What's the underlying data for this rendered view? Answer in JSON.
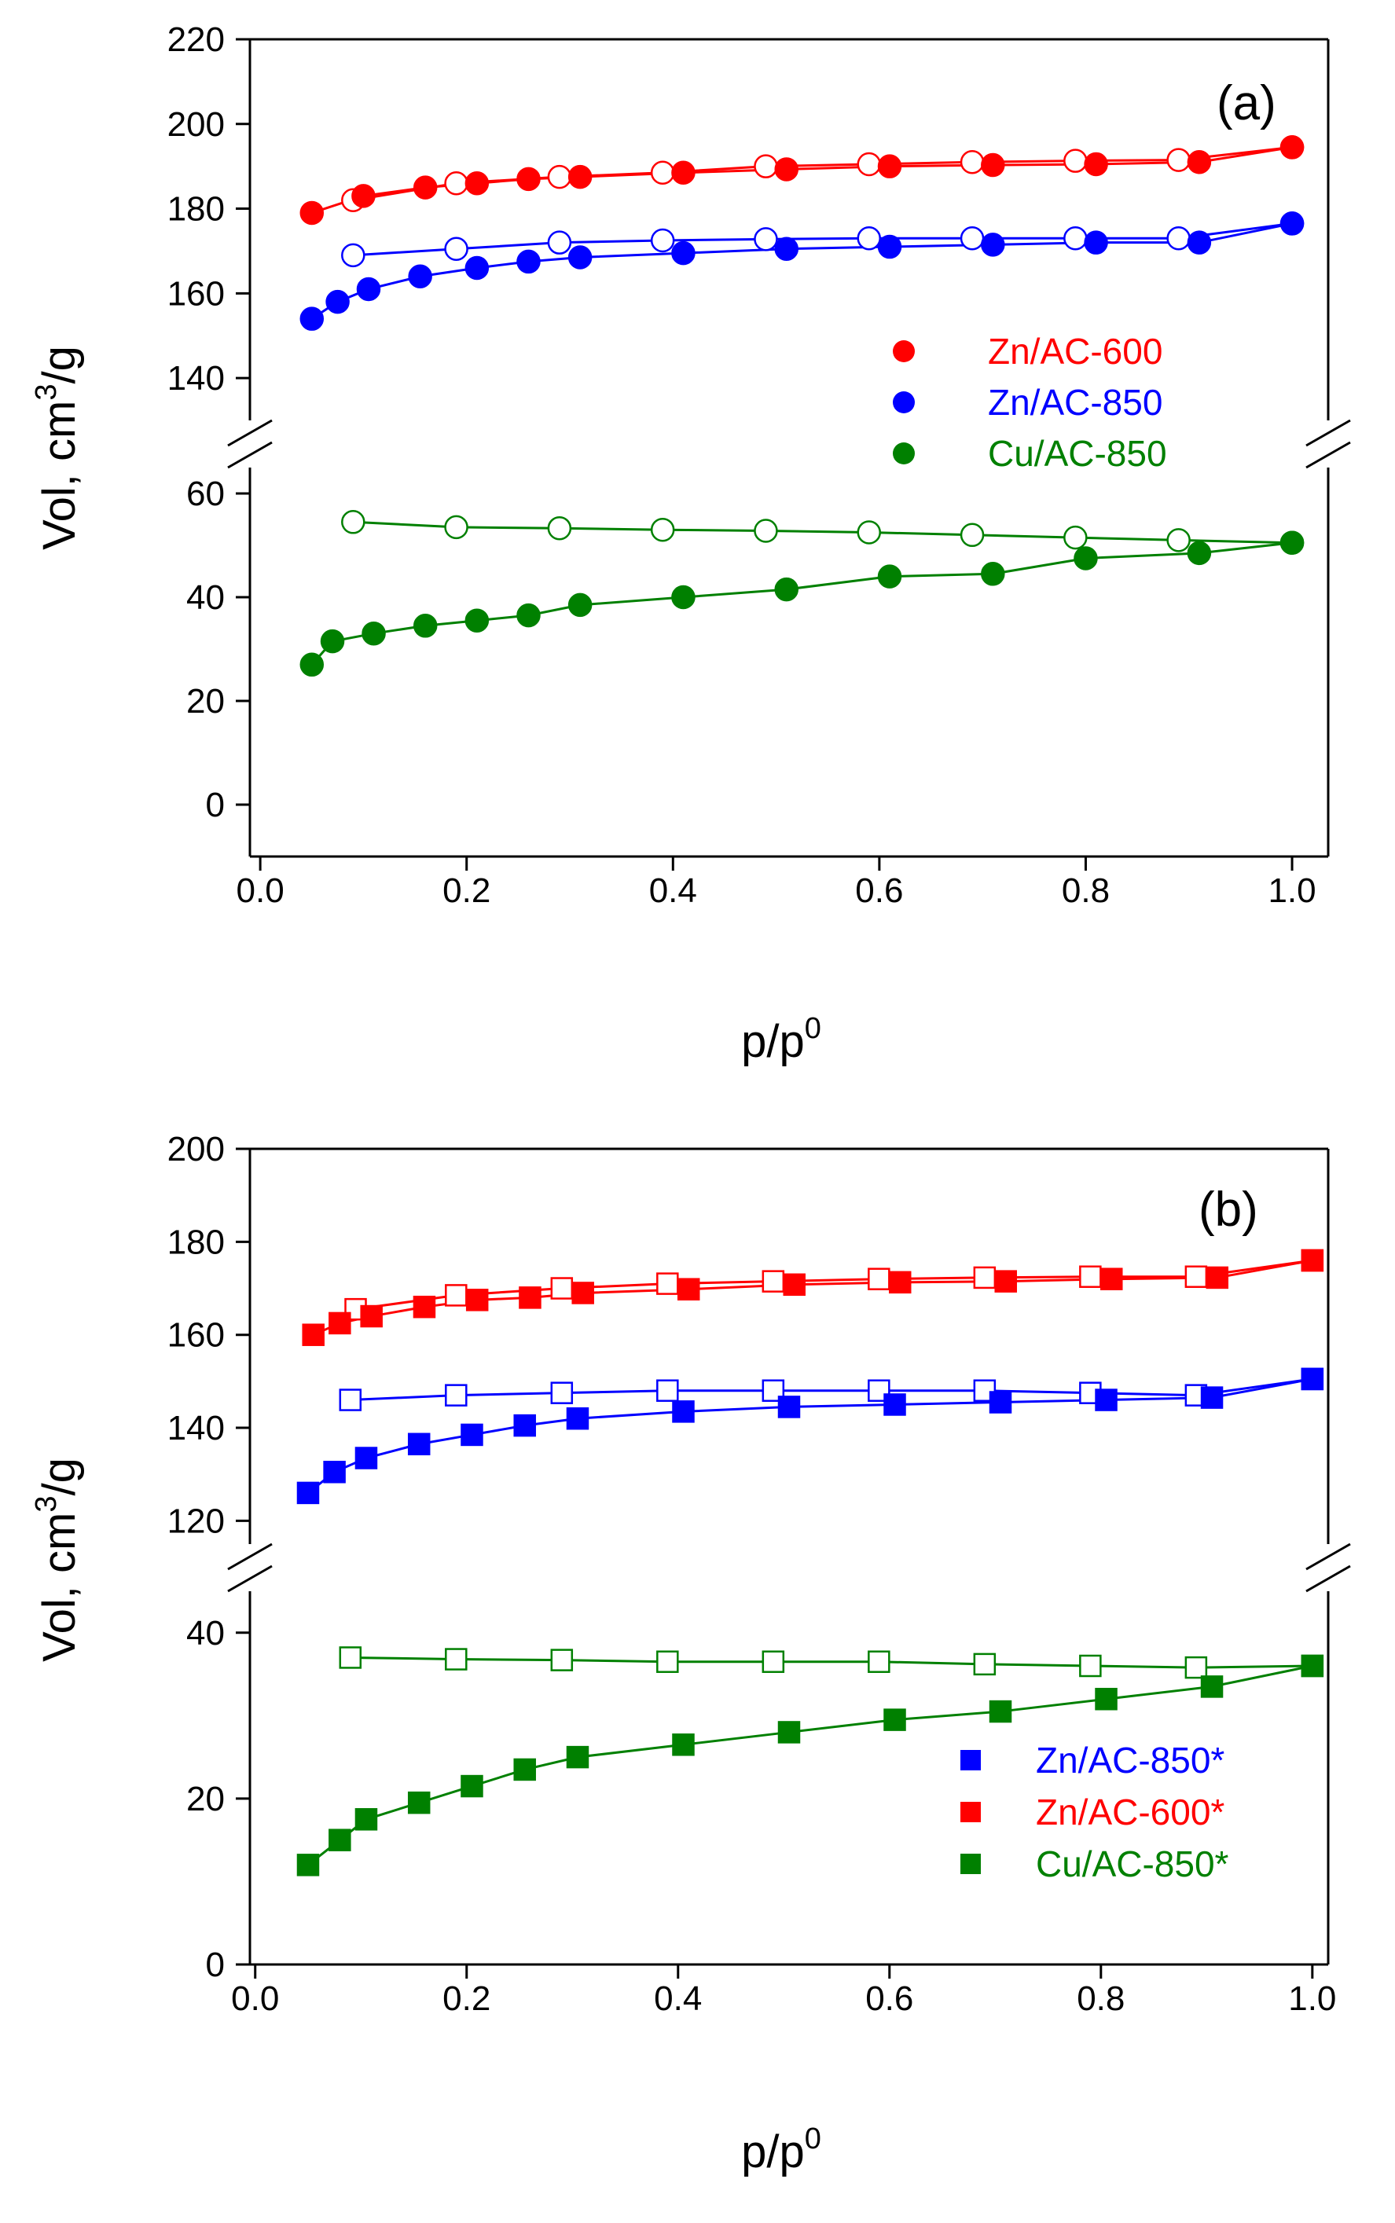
{
  "chart_data": [
    {
      "type": "scatter",
      "panel_label": "(a)",
      "xlabel": "p/p",
      "xlabel_sup": "0",
      "ylabel": "Vol, cm",
      "ylabel_sup": "3",
      "ylabel_suffix": "/g",
      "xlim": [
        0.0,
        1.0
      ],
      "xticks": [
        "0.0",
        "0.2",
        "0.4",
        "0.6",
        "0.8",
        "1.0"
      ],
      "broken_axis": true,
      "upper_ylim": [
        130,
        220
      ],
      "upper_yticks": [
        "140",
        "160",
        "180",
        "200",
        "220"
      ],
      "lower_ylim": [
        -10,
        65
      ],
      "lower_yticks": [
        "0",
        "20",
        "40",
        "60"
      ],
      "marker": "circle",
      "legend_position": "middle-right",
      "series": [
        {
          "name": "Zn/AC-600",
          "color": "#ff0000",
          "segment": "upper",
          "adsorption": {
            "x": [
              0.05,
              0.1,
              0.16,
              0.21,
              0.26,
              0.31,
              0.41,
              0.51,
              0.61,
              0.71,
              0.81,
              0.91,
              1.0
            ],
            "y": [
              179,
              183,
              185,
              186,
              187,
              187.5,
              188.5,
              189.3,
              190,
              190.3,
              190.5,
              191,
              194.5
            ]
          },
          "desorption": {
            "x": [
              0.09,
              0.19,
              0.29,
              0.39,
              0.49,
              0.59,
              0.69,
              0.79,
              0.89,
              1.0
            ],
            "y": [
              182,
              186,
              187.5,
              188.5,
              190,
              190.5,
              191,
              191.3,
              191.5,
              194.5
            ]
          }
        },
        {
          "name": "Zn/AC-850",
          "color": "#0000ff",
          "segment": "upper",
          "adsorption": {
            "x": [
              0.05,
              0.075,
              0.105,
              0.155,
              0.21,
              0.26,
              0.31,
              0.41,
              0.51,
              0.61,
              0.71,
              0.81,
              0.91,
              1.0
            ],
            "y": [
              154,
              158,
              161,
              164,
              166,
              167.5,
              168.5,
              169.5,
              170.5,
              171,
              171.5,
              172,
              172,
              176.5
            ]
          },
          "desorption": {
            "x": [
              0.09,
              0.19,
              0.29,
              0.39,
              0.49,
              0.59,
              0.69,
              0.79,
              0.89,
              1.0
            ],
            "y": [
              169,
              170.5,
              172,
              172.5,
              172.8,
              173,
              173,
              173,
              173,
              176.5
            ]
          }
        },
        {
          "name": "Cu/AC-850",
          "color": "#008000",
          "segment": "lower",
          "adsorption": {
            "x": [
              0.05,
              0.07,
              0.11,
              0.16,
              0.21,
              0.26,
              0.31,
              0.41,
              0.51,
              0.61,
              0.71,
              0.8,
              0.91,
              1.0
            ],
            "y": [
              27,
              31.5,
              33,
              34.5,
              35.5,
              36.5,
              38.5,
              40,
              41.5,
              44,
              44.5,
              47.5,
              48.5,
              50.5
            ]
          },
          "desorption": {
            "x": [
              0.09,
              0.19,
              0.29,
              0.39,
              0.49,
              0.59,
              0.69,
              0.79,
              0.89,
              1.0
            ],
            "y": [
              54.5,
              53.5,
              53.3,
              53,
              52.8,
              52.5,
              52,
              51.5,
              51,
              50.5
            ]
          }
        }
      ]
    },
    {
      "type": "scatter",
      "panel_label": "(b)",
      "xlabel": "p/p",
      "xlabel_sup": "0",
      "ylabel": "Vol, cm",
      "ylabel_sup": "3",
      "ylabel_suffix": "/g",
      "xlim": [
        0.0,
        1.0
      ],
      "xticks": [
        "0.0",
        "0.2",
        "0.4",
        "0.6",
        "0.8",
        "1.0"
      ],
      "broken_axis": true,
      "upper_ylim": [
        115,
        200
      ],
      "upper_yticks": [
        "120",
        "140",
        "160",
        "180",
        "200"
      ],
      "lower_ylim": [
        0,
        45
      ],
      "lower_yticks": [
        "0",
        "20",
        "40"
      ],
      "marker": "square",
      "legend_position": "lower-right",
      "series": [
        {
          "name": "Zn/AC-850*",
          "color": "#0000ff",
          "segment": "upper",
          "adsorption": {
            "x": [
              0.05,
              0.075,
              0.105,
              0.155,
              0.205,
              0.255,
              0.305,
              0.405,
              0.505,
              0.605,
              0.705,
              0.805,
              0.905,
              1.0
            ],
            "y": [
              126,
              130.5,
              133.5,
              136.5,
              138.5,
              140.5,
              142,
              143.5,
              144.5,
              145,
              145.5,
              146,
              146.5,
              150.5
            ]
          },
          "desorption": {
            "x": [
              0.09,
              0.19,
              0.29,
              0.39,
              0.49,
              0.59,
              0.69,
              0.79,
              0.89,
              1.0
            ],
            "y": [
              146,
              147,
              147.5,
              148,
              148,
              148,
              148,
              147.5,
              147,
              150.5
            ]
          }
        },
        {
          "name": "Zn/AC-600*",
          "color": "#ff0000",
          "segment": "upper",
          "adsorption": {
            "x": [
              0.055,
              0.08,
              0.11,
              0.16,
              0.21,
              0.26,
              0.31,
              0.41,
              0.51,
              0.61,
              0.71,
              0.81,
              0.91,
              1.0
            ],
            "y": [
              160,
              162.5,
              164,
              166,
              167.5,
              168,
              169,
              169.8,
              170.8,
              171.3,
              171.5,
              172,
              172.3,
              176
            ]
          },
          "desorption": {
            "x": [
              0.095,
              0.19,
              0.29,
              0.39,
              0.49,
              0.59,
              0.69,
              0.79,
              0.89,
              1.0
            ],
            "y": [
              165.5,
              168.5,
              170,
              171,
              171.5,
              172,
              172.3,
              172.5,
              172.5,
              176
            ]
          }
        },
        {
          "name": "Cu/AC-850*",
          "color": "#008000",
          "segment": "lower",
          "adsorption": {
            "x": [
              0.05,
              0.08,
              0.105,
              0.155,
              0.205,
              0.255,
              0.305,
              0.405,
              0.505,
              0.605,
              0.705,
              0.805,
              0.905,
              1.0
            ],
            "y": [
              12,
              15,
              17.5,
              19.5,
              21.5,
              23.5,
              25,
              26.5,
              28,
              29.5,
              30.5,
              32,
              33.5,
              36
            ]
          },
          "desorption": {
            "x": [
              0.09,
              0.19,
              0.29,
              0.39,
              0.49,
              0.59,
              0.69,
              0.79,
              0.89,
              1.0
            ],
            "y": [
              37,
              36.8,
              36.7,
              36.5,
              36.5,
              36.5,
              36.2,
              36,
              35.8,
              36
            ]
          }
        }
      ]
    }
  ]
}
